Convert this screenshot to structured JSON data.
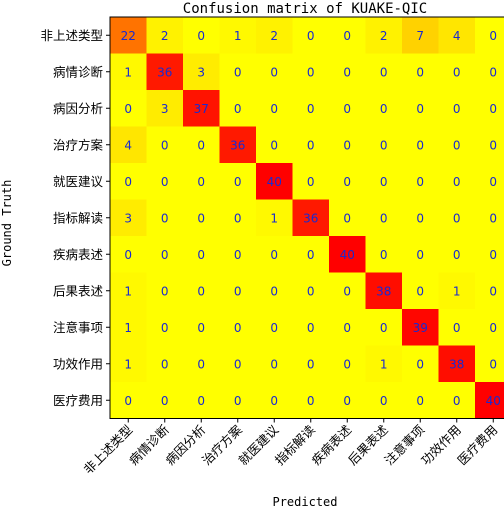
{
  "chart_data": {
    "type": "heatmap",
    "title": "Confusion matrix of KUAKE-QIC",
    "xlabel": "Predicted",
    "ylabel": "Ground Truth",
    "colormap": "autumn_r",
    "value_range": [
      0,
      40
    ],
    "categories": [
      "非上述类型",
      "病情诊断",
      "病因分析",
      "治疗方案",
      "就医建议",
      "指标解读",
      "疾病表述",
      "后果表述",
      "注意事项",
      "功效作用",
      "医疗费用"
    ],
    "matrix": [
      [
        22,
        2,
        0,
        1,
        2,
        0,
        0,
        2,
        7,
        4,
        0
      ],
      [
        1,
        36,
        3,
        0,
        0,
        0,
        0,
        0,
        0,
        0,
        0
      ],
      [
        0,
        3,
        37,
        0,
        0,
        0,
        0,
        0,
        0,
        0,
        0
      ],
      [
        4,
        0,
        0,
        36,
        0,
        0,
        0,
        0,
        0,
        0,
        0
      ],
      [
        0,
        0,
        0,
        0,
        40,
        0,
        0,
        0,
        0,
        0,
        0
      ],
      [
        3,
        0,
        0,
        0,
        1,
        36,
        0,
        0,
        0,
        0,
        0
      ],
      [
        0,
        0,
        0,
        0,
        0,
        0,
        40,
        0,
        0,
        0,
        0
      ],
      [
        1,
        0,
        0,
        0,
        0,
        0,
        0,
        38,
        0,
        1,
        0
      ],
      [
        1,
        0,
        0,
        0,
        0,
        0,
        0,
        0,
        39,
        0,
        0
      ],
      [
        1,
        0,
        0,
        0,
        0,
        0,
        0,
        1,
        0,
        38,
        0
      ],
      [
        0,
        0,
        0,
        0,
        0,
        0,
        0,
        0,
        0,
        0,
        40
      ]
    ]
  }
}
